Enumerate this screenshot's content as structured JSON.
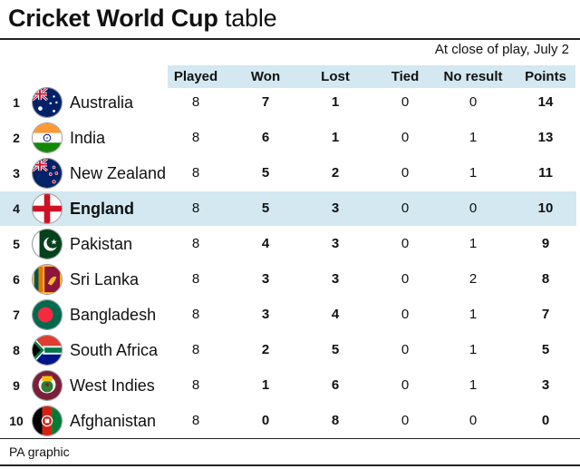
{
  "title_bold": "Cricket World Cup",
  "title_light": "table",
  "subtitle": "At close of play, July 2",
  "columns": [
    "Played",
    "Won",
    "Lost",
    "Tied",
    "No result",
    "Points"
  ],
  "rows": [
    {
      "rank": "1",
      "team": "Australia",
      "played": "8",
      "won": "7",
      "lost": "1",
      "tied": "0",
      "nr": "0",
      "points": "14"
    },
    {
      "rank": "2",
      "team": "India",
      "played": "8",
      "won": "6",
      "lost": "1",
      "tied": "0",
      "nr": "1",
      "points": "13"
    },
    {
      "rank": "3",
      "team": "New Zealand",
      "played": "8",
      "won": "5",
      "lost": "2",
      "tied": "0",
      "nr": "1",
      "points": "11"
    },
    {
      "rank": "4",
      "team": "England",
      "played": "8",
      "won": "5",
      "lost": "3",
      "tied": "0",
      "nr": "0",
      "points": "10",
      "highlight": true
    },
    {
      "rank": "5",
      "team": "Pakistan",
      "played": "8",
      "won": "4",
      "lost": "3",
      "tied": "0",
      "nr": "1",
      "points": "9"
    },
    {
      "rank": "6",
      "team": "Sri Lanka",
      "played": "8",
      "won": "3",
      "lost": "3",
      "tied": "0",
      "nr": "2",
      "points": "8"
    },
    {
      "rank": "7",
      "team": "Bangladesh",
      "played": "8",
      "won": "3",
      "lost": "4",
      "tied": "0",
      "nr": "1",
      "points": "7"
    },
    {
      "rank": "8",
      "team": "South Africa",
      "played": "8",
      "won": "2",
      "lost": "5",
      "tied": "0",
      "nr": "1",
      "points": "5"
    },
    {
      "rank": "9",
      "team": "West Indies",
      "played": "8",
      "won": "1",
      "lost": "6",
      "tied": "0",
      "nr": "1",
      "points": "3"
    },
    {
      "rank": "10",
      "team": "Afghanistan",
      "played": "8",
      "won": "0",
      "lost": "8",
      "tied": "0",
      "nr": "0",
      "points": "0"
    }
  ],
  "flags": [
    "australia-flag-icon",
    "india-flag-icon",
    "new-zealand-flag-icon",
    "england-flag-icon",
    "pakistan-flag-icon",
    "sri-lanka-flag-icon",
    "bangladesh-flag-icon",
    "south-africa-flag-icon",
    "west-indies-flag-icon",
    "afghanistan-flag-icon"
  ],
  "colors": {
    "header_band": "#d3e8f1",
    "highlight_row": "#d3e8f1"
  },
  "source": "PA graphic"
}
